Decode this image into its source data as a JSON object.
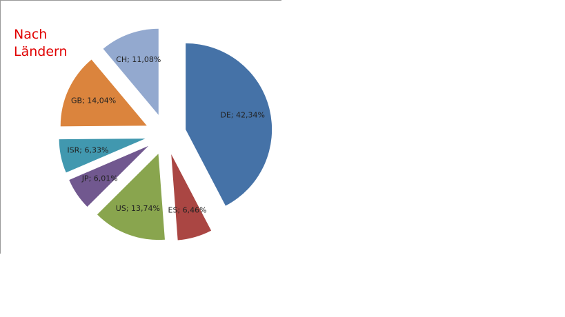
{
  "chart_data": {
    "type": "pie",
    "title": "Nach Ländern",
    "categories": [
      "DE",
      "ES",
      "US",
      "JP",
      "ISR",
      "GB",
      "CH"
    ],
    "values": [
      42.34,
      6.46,
      13.74,
      6.01,
      6.33,
      14.04,
      11.08
    ],
    "value_labels": [
      "DE; 42,34%",
      "ES; 6,46%",
      "US; 13,74%",
      "JP; 6,01%",
      "ISR; 6,33%",
      "GB; 14,04%",
      "CH; 11,08%"
    ],
    "colors": [
      "#4572a7",
      "#aa4643",
      "#89a54e",
      "#71588f",
      "#4198af",
      "#db843d",
      "#93a9cf"
    ]
  }
}
